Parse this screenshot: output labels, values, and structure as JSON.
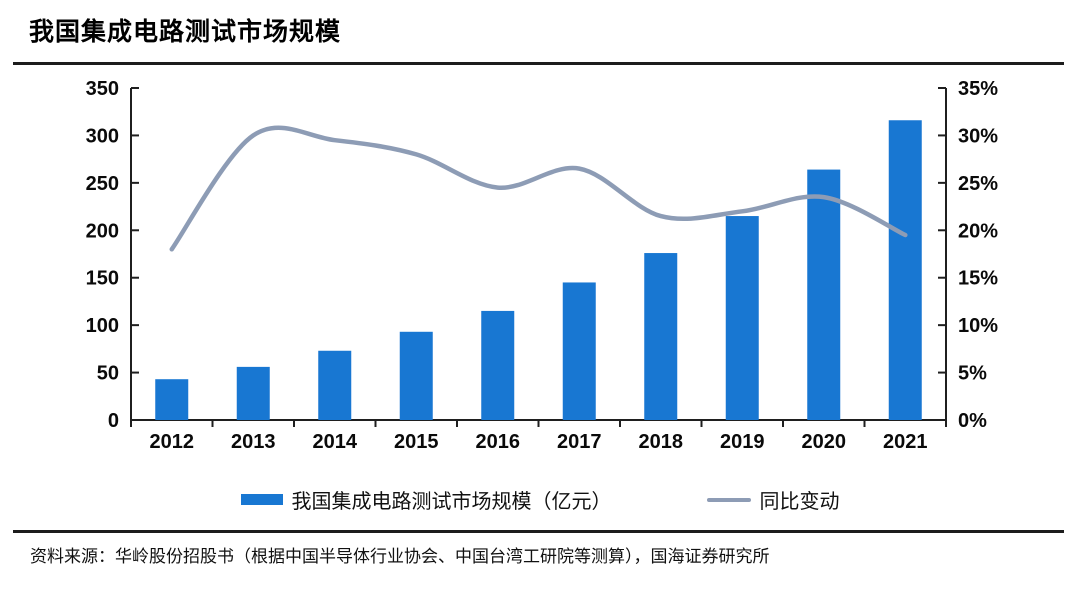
{
  "page": {
    "title": "我国集成电路测试市场规模",
    "source_note": "资料来源：华岭股份招股书（根据中国半导体行业协会、中国台湾工研院等测算），国海证券研究所"
  },
  "chart_data": {
    "type": "bar",
    "subtype": "combo-bar-line-dual-axis",
    "title": "我国集成电路测试市场规模",
    "categories": [
      "2012",
      "2013",
      "2014",
      "2015",
      "2016",
      "2017",
      "2018",
      "2019",
      "2020",
      "2021"
    ],
    "series": [
      {
        "name": "我国集成电路测试市场规模（亿元）",
        "type": "bar",
        "axis": "left",
        "color": "#1877D2",
        "values": [
          43,
          56,
          73,
          93,
          115,
          145,
          176,
          215,
          264,
          316
        ]
      },
      {
        "name": "同比变动",
        "type": "line",
        "axis": "right",
        "color": "#8D9CB5",
        "values": [
          18,
          30,
          29.5,
          28,
          24.5,
          26.5,
          21.5,
          22,
          23.5,
          19.5
        ]
      }
    ],
    "left_axis": {
      "min": 0,
      "max": 350,
      "step": 50,
      "tick_labels": [
        "0",
        "50",
        "100",
        "150",
        "200",
        "250",
        "300",
        "350"
      ]
    },
    "right_axis": {
      "min": 0,
      "max": 35,
      "step": 5,
      "unit": "%",
      "tick_labels": [
        "0%",
        "5%",
        "10%",
        "15%",
        "20%",
        "25%",
        "30%",
        "35%"
      ]
    },
    "legend_position": "bottom",
    "grid": false,
    "axis_color": "#1f1f1f"
  }
}
